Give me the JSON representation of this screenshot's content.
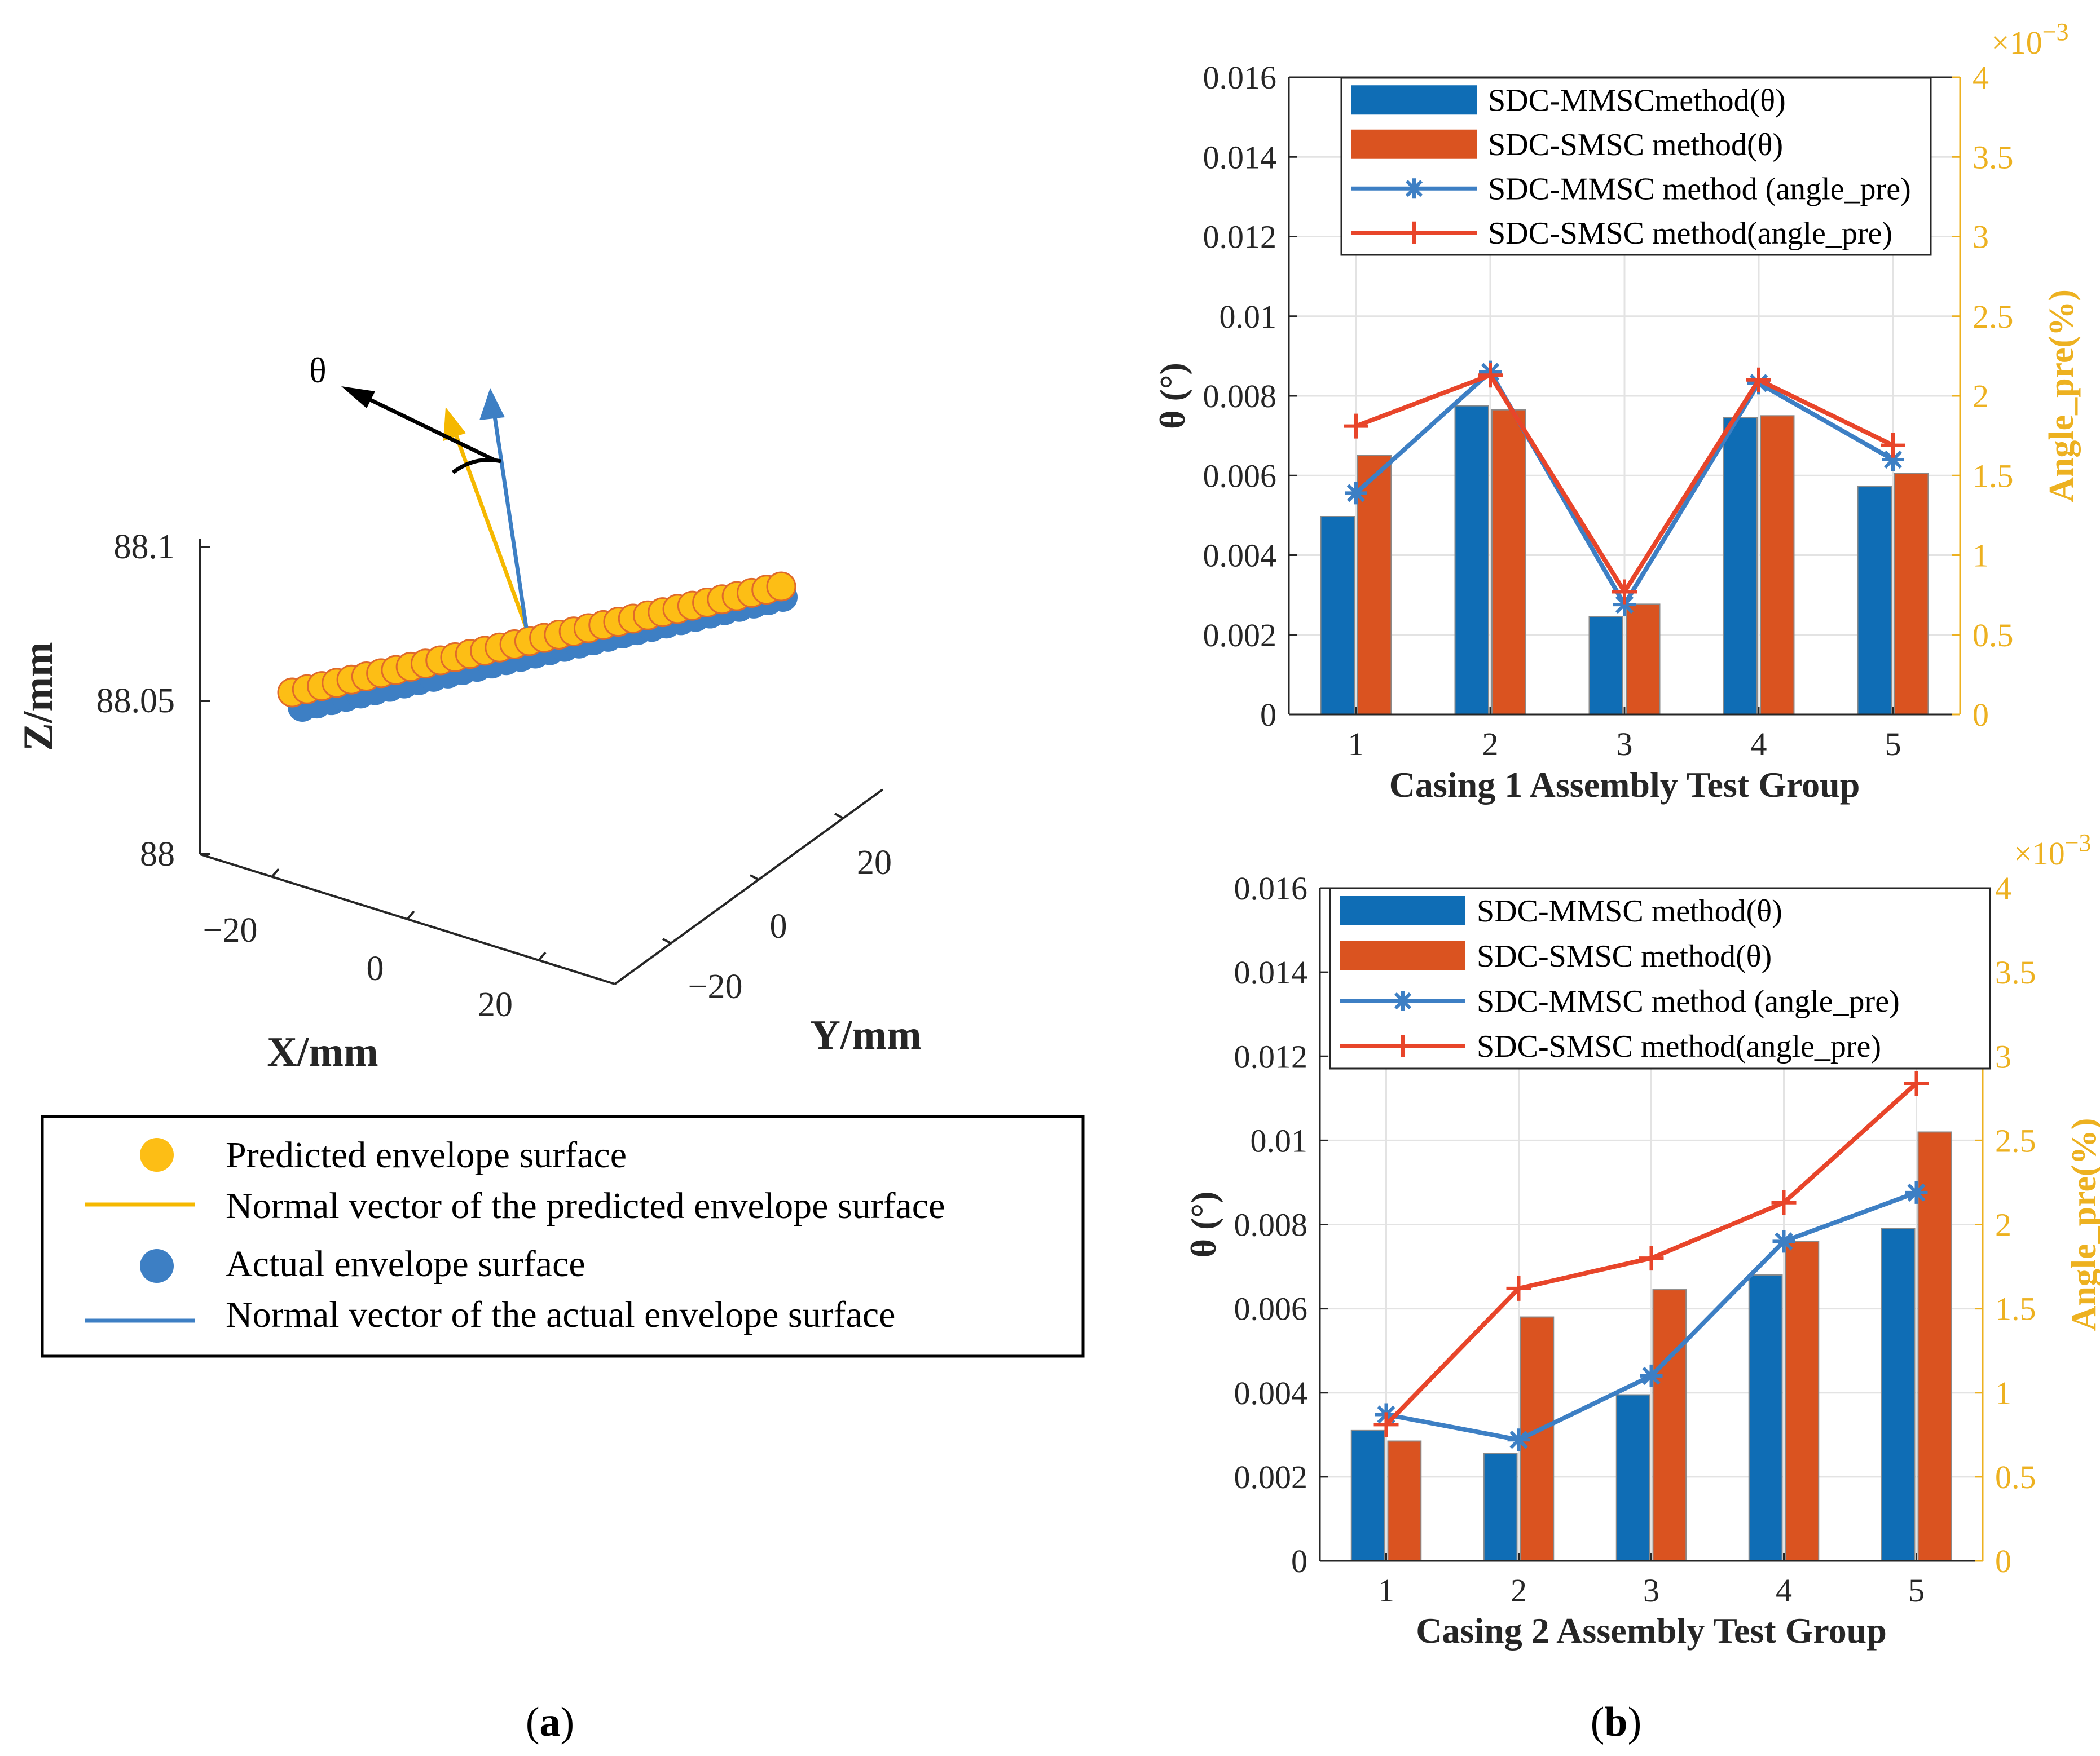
{
  "colors": {
    "mmsc_bar": "#0F6DB5",
    "smsc_bar": "#DA5320",
    "mmsc_line": "#3D7FC4",
    "smsc_line": "#E8452A",
    "right_axis": "#EDB120",
    "predicted": "#FDBE15",
    "predicted_edge": "#E06A2A",
    "actual": "#3D7FC4"
  },
  "panel_a": {
    "label_open": "(",
    "label": "a",
    "label_close": ")",
    "theta_symbol": "θ",
    "x_axis_label": "X/mm",
    "y_axis_label": "Y/mm",
    "z_axis_label": "Z/mm",
    "x_ticks": [
      "−20",
      "0",
      "20"
    ],
    "y_ticks": [
      "20",
      "0",
      "−20"
    ],
    "z_ticks": [
      "88.1",
      "88.05",
      "88"
    ],
    "legend": [
      "Predicted envelope surface",
      "Normal vector of the predicted envelope surface",
      "Actual envelope surface",
      "Normal vector of the actual envelope surface"
    ]
  },
  "panel_b": {
    "label_open": "(",
    "label": "b",
    "label_close": ")"
  },
  "chart_data": [
    {
      "type": "bar",
      "title": "",
      "xlabel": "Casing 1 Assembly Test Group",
      "ylabel": "θ (°)",
      "ylabel_right": "Angle_pre(%)",
      "right_exponent_base": "×10",
      "right_exponent": "−3",
      "categories": [
        "1",
        "2",
        "3",
        "4",
        "5"
      ],
      "ylim": [
        0,
        0.016
      ],
      "y_ticks": [
        "0",
        "0.002",
        "0.004",
        "0.006",
        "0.008",
        "0.01",
        "0.012",
        "0.014",
        "0.016"
      ],
      "ylim_right": [
        0,
        4
      ],
      "y_ticks_right": [
        "0",
        "0.5",
        "1",
        "1.5",
        "2",
        "2.5",
        "3",
        "3.5",
        "4"
      ],
      "grid": true,
      "legend_position": "top",
      "series": [
        {
          "name": "SDC-MMSCmethod(θ)",
          "kind": "bar",
          "axis": "left",
          "values": [
            0.00497,
            0.00775,
            0.00245,
            0.00745,
            0.00572
          ]
        },
        {
          "name": "SDC-SMSC method(θ)",
          "kind": "bar",
          "axis": "left",
          "values": [
            0.0065,
            0.00765,
            0.00277,
            0.0075,
            0.00605
          ]
        },
        {
          "name": "SDC-MMSC method (angle_pre)",
          "kind": "line",
          "marker": "*",
          "axis": "right",
          "values": [
            1.39,
            2.15,
            0.69,
            2.08,
            1.6
          ]
        },
        {
          "name": "SDC-SMSC method(angle_pre)",
          "kind": "line",
          "marker": "+",
          "axis": "right",
          "values": [
            1.81,
            2.13,
            0.77,
            2.1,
            1.69
          ]
        }
      ]
    },
    {
      "type": "bar",
      "title": "",
      "xlabel": "Casing 2 Assembly Test Group",
      "ylabel": "θ (°)",
      "ylabel_right": "Angle_pre(%)",
      "right_exponent_base": "×10",
      "right_exponent": "−3",
      "categories": [
        "1",
        "2",
        "3",
        "4",
        "5"
      ],
      "ylim": [
        0,
        0.016
      ],
      "y_ticks": [
        "0",
        "0.002",
        "0.004",
        "0.006",
        "0.008",
        "0.01",
        "0.012",
        "0.014",
        "0.016"
      ],
      "ylim_right": [
        0,
        4
      ],
      "y_ticks_right": [
        "0",
        "0.5",
        "1",
        "1.5",
        "2",
        "2.5",
        "3",
        "3.5",
        "4"
      ],
      "grid": true,
      "legend_position": "top",
      "series": [
        {
          "name": "SDC-MMSC method(θ)",
          "kind": "bar",
          "axis": "left",
          "values": [
            0.0031,
            0.00255,
            0.00395,
            0.0068,
            0.0079
          ]
        },
        {
          "name": "SDC-SMSC method(θ)",
          "kind": "bar",
          "axis": "left",
          "values": [
            0.00285,
            0.0058,
            0.00645,
            0.0076,
            0.0102
          ]
        },
        {
          "name": "SDC-MMSC method (angle_pre)",
          "kind": "line",
          "marker": "*",
          "axis": "right",
          "values": [
            0.87,
            0.72,
            1.1,
            1.9,
            2.19
          ]
        },
        {
          "name": "SDC-SMSC method(angle_pre)",
          "kind": "line",
          "marker": "+",
          "axis": "right",
          "values": [
            0.81,
            1.62,
            1.8,
            2.13,
            2.84
          ]
        }
      ]
    }
  ]
}
